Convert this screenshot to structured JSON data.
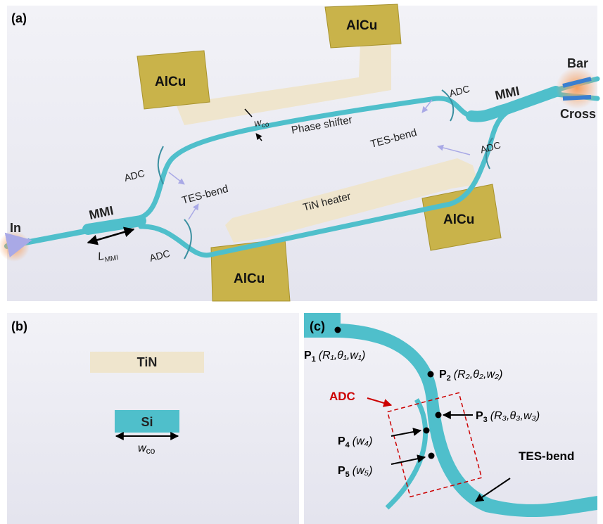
{
  "panel_a": {
    "label": "(a)",
    "pads": [
      "AlCu",
      "AlCu",
      "AlCu",
      "AlCu"
    ],
    "bar": "Bar",
    "cross": "Cross",
    "mmi": [
      "MMI",
      "MMI"
    ],
    "adc": [
      "ADC",
      "ADC",
      "ADC",
      "ADC"
    ],
    "tes_bend": [
      "TES-bend",
      "TES-bend"
    ],
    "phase_shifter": "Phase shifter",
    "tin_heater": "TiN heater",
    "input": "In",
    "l_mmi": {
      "main": "L",
      "sub": "MMI"
    },
    "w_co": {
      "main": "w",
      "sub": "co"
    }
  },
  "panel_b": {
    "label": "(b)",
    "tin": "TiN",
    "si": "Si",
    "w_co": {
      "main": "w",
      "sub": "co"
    }
  },
  "panel_c": {
    "label": "(c)",
    "adc": "ADC",
    "tes_bend": "TES-bend",
    "points": [
      {
        "name": "P",
        "sub": "1",
        "params": "(R₁,θ₁,w₁)"
      },
      {
        "name": "P",
        "sub": "2",
        "params": "(R₂,θ₂,w₂)"
      },
      {
        "name": "P",
        "sub": "3",
        "params": "(R₃,θ₃,w₃)"
      },
      {
        "name": "P",
        "sub": "4",
        "params": "(w₄)"
      },
      {
        "name": "P",
        "sub": "5",
        "params": "(w₅)"
      }
    ]
  }
}
